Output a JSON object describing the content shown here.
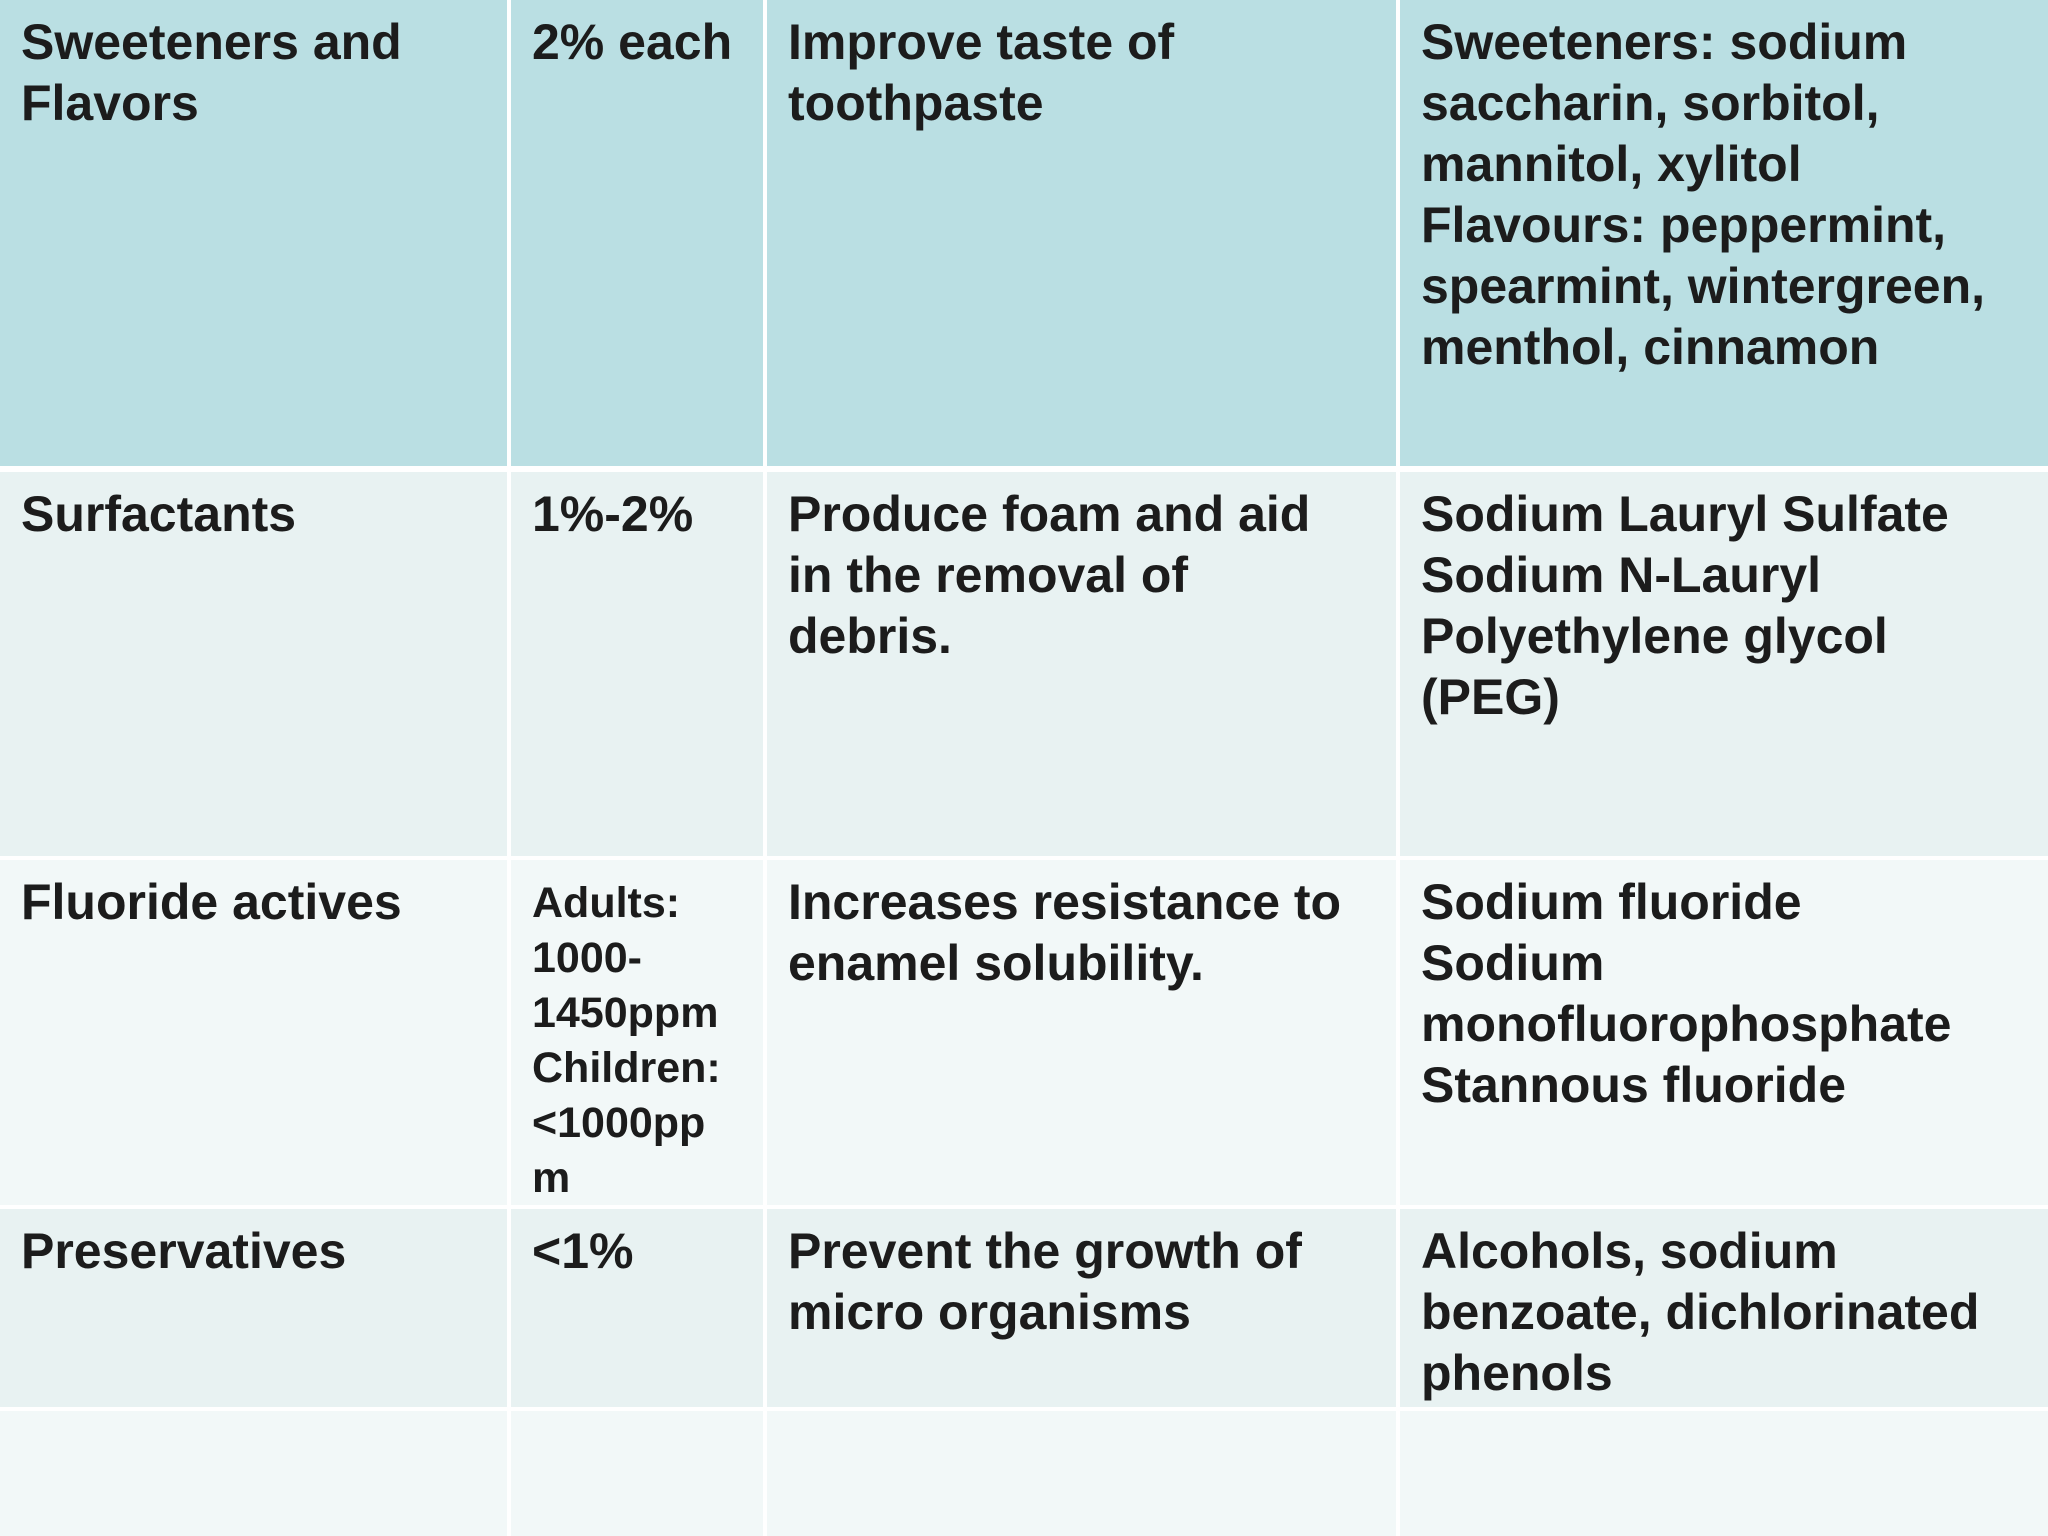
{
  "table": {
    "rows": [
      {
        "component": "Sweeteners and\nFlavors",
        "amount": "2% each",
        "function": "Improve taste of\ntoothpaste",
        "examples": "Sweeteners: sodium\nsaccharin, sorbitol,\nmannitol, xylitol\nFlavours:  peppermint,\nspearmint, wintergreen,\nmenthol, cinnamon"
      },
      {
        "component": "Surfactants",
        "amount": "1%-2%",
        "function": "Produce foam and aid\nin the removal of\ndebris.",
        "examples": "Sodium Lauryl Sulfate\nSodium N-Lauryl\nPolyethylene glycol\n(PEG)"
      },
      {
        "component": "Fluoride actives",
        "amount": "Adults:\n1000-\n1450ppm\nChildren:\n<1000pp\nm",
        "function": "Increases resistance to\nenamel solubility.",
        "examples": "Sodium fluoride\nSodium\nmonofluorophosphate\nStannous fluoride"
      },
      {
        "component": "Preservatives",
        "amount": "<1%",
        "function": "Prevent the growth of\nmicro organisms",
        "examples": "Alcohols, sodium\nbenzoate, dichlorinated\nphenols"
      },
      {
        "component": "",
        "amount": "",
        "function": "",
        "examples": ""
      }
    ]
  },
  "colors": {
    "header_row": "#badfe3",
    "band_dark": "#e8f2f2",
    "band_light": "#f2f8f8",
    "text": "#1c1c1c"
  }
}
